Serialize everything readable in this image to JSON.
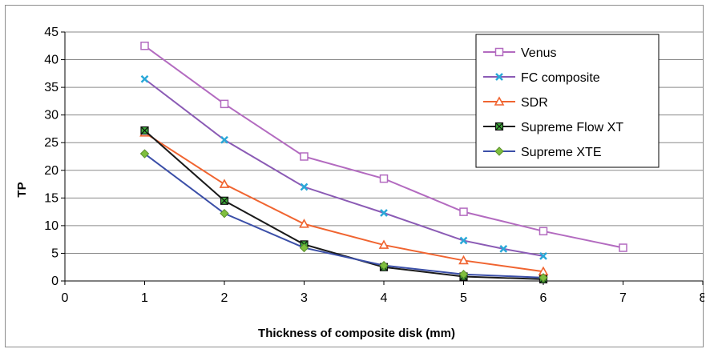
{
  "chart_data": {
    "type": "line",
    "title": "",
    "xlabel": "Thickness of composite disk (mm)",
    "ylabel": "TP",
    "xlim": [
      0,
      8
    ],
    "ylim": [
      0,
      45
    ],
    "xticks": [
      0,
      1,
      2,
      3,
      4,
      5,
      6,
      7,
      8
    ],
    "yticks": [
      0,
      5,
      10,
      15,
      20,
      25,
      30,
      35,
      40,
      45
    ],
    "grid": "horizontal",
    "legend_position": "top-right",
    "series": [
      {
        "name": "Venus",
        "color": "#b36bc0",
        "marker": "square-open",
        "x": [
          1,
          2,
          3,
          4,
          5,
          6,
          7
        ],
        "y": [
          42.5,
          32.0,
          22.5,
          18.5,
          12.5,
          9.0,
          6.0
        ]
      },
      {
        "name": "FC composite",
        "color": "#8b5bb5",
        "marker": "x-cyan",
        "x": [
          1,
          2,
          3,
          4,
          5,
          5.5,
          6
        ],
        "y": [
          36.5,
          25.5,
          17.0,
          12.3,
          7.3,
          5.8,
          4.5
        ]
      },
      {
        "name": "SDR",
        "color": "#f06430",
        "marker": "triangle",
        "x": [
          1,
          2,
          3,
          4,
          5,
          6
        ],
        "y": [
          26.8,
          17.5,
          10.3,
          6.5,
          3.7,
          1.7
        ]
      },
      {
        "name": "Supreme Flow XT",
        "color": "#1a1a1a",
        "marker": "square-green",
        "x": [
          1,
          2,
          3,
          4,
          5,
          6
        ],
        "y": [
          27.2,
          14.5,
          6.6,
          2.5,
          0.8,
          0.3
        ]
      },
      {
        "name": "Supreme XTE",
        "color": "#3b4fa8",
        "marker": "diamond-green",
        "x": [
          1,
          2,
          3,
          4,
          5,
          6
        ],
        "y": [
          23.0,
          12.2,
          6.0,
          2.8,
          1.2,
          0.6
        ]
      }
    ]
  }
}
